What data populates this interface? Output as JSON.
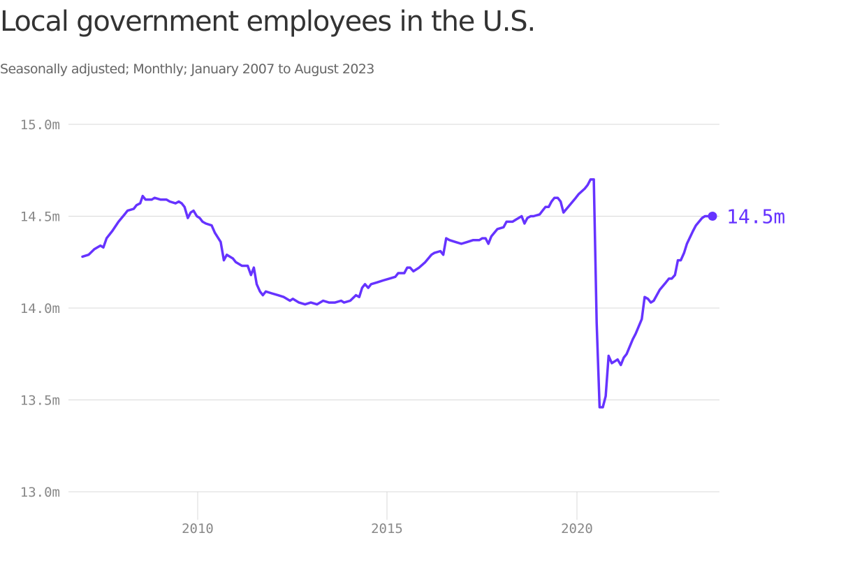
{
  "chart_data": {
    "type": "line",
    "title": "Local government employees in the U.S.",
    "subtitle": "Seasonally adjusted; Monthly; January 2007 to August 2023",
    "xlabel": "",
    "ylabel": "",
    "ylim": [
      13.0,
      15.0
    ],
    "xlim": [
      2007,
      2023.6
    ],
    "y_ticks": [
      {
        "value": 13.0,
        "label": "13.0m"
      },
      {
        "value": 13.5,
        "label": "13.5m"
      },
      {
        "value": 14.0,
        "label": "14.0m"
      },
      {
        "value": 14.5,
        "label": "14.5m"
      },
      {
        "value": 15.0,
        "label": "15.0m"
      }
    ],
    "x_ticks": [
      {
        "value": 2010,
        "label": "2010"
      },
      {
        "value": 2015,
        "label": "2015"
      },
      {
        "value": 2020,
        "label": "2020"
      }
    ],
    "grid": "horizontal",
    "line_color": "#6633ff",
    "end_label": "14.5m",
    "series": [
      {
        "values": [
          [
            2007.0,
            14.28
          ],
          [
            2007.17,
            14.29
          ],
          [
            2007.33,
            14.32
          ],
          [
            2007.5,
            14.34
          ],
          [
            2007.58,
            14.33
          ],
          [
            2007.67,
            14.38
          ],
          [
            2007.83,
            14.42
          ],
          [
            2008.0,
            14.47
          ],
          [
            2008.17,
            14.51
          ],
          [
            2008.25,
            14.53
          ],
          [
            2008.42,
            14.54
          ],
          [
            2008.5,
            14.56
          ],
          [
            2008.6,
            14.57
          ],
          [
            2008.67,
            14.61
          ],
          [
            2008.75,
            14.59
          ],
          [
            2008.92,
            14.59
          ],
          [
            2009.0,
            14.6
          ],
          [
            2009.17,
            14.59
          ],
          [
            2009.33,
            14.59
          ],
          [
            2009.42,
            14.58
          ],
          [
            2009.58,
            14.57
          ],
          [
            2009.67,
            14.58
          ],
          [
            2009.75,
            14.57
          ],
          [
            2009.83,
            14.55
          ],
          [
            2009.92,
            14.49
          ],
          [
            2010.0,
            14.52
          ],
          [
            2010.08,
            14.53
          ],
          [
            2010.17,
            14.5
          ],
          [
            2010.25,
            14.49
          ],
          [
            2010.33,
            14.47
          ],
          [
            2010.42,
            14.46
          ],
          [
            2010.58,
            14.45
          ],
          [
            2010.67,
            14.41
          ],
          [
            2010.83,
            14.36
          ],
          [
            2010.92,
            14.26
          ],
          [
            2011.0,
            14.29
          ],
          [
            2011.17,
            14.27
          ],
          [
            2011.25,
            14.25
          ],
          [
            2011.42,
            14.23
          ],
          [
            2011.58,
            14.23
          ],
          [
            2011.67,
            14.18
          ],
          [
            2011.75,
            14.22
          ],
          [
            2011.83,
            14.13
          ],
          [
            2011.92,
            14.09
          ],
          [
            2012.0,
            14.07
          ],
          [
            2012.08,
            14.09
          ],
          [
            2012.25,
            14.08
          ],
          [
            2012.42,
            14.07
          ],
          [
            2012.58,
            14.06
          ],
          [
            2012.75,
            14.04
          ],
          [
            2012.83,
            14.05
          ],
          [
            2013.0,
            14.03
          ],
          [
            2013.17,
            14.02
          ],
          [
            2013.33,
            14.03
          ],
          [
            2013.5,
            14.02
          ],
          [
            2013.67,
            14.04
          ],
          [
            2013.83,
            14.03
          ],
          [
            2014.0,
            14.03
          ],
          [
            2014.17,
            14.04
          ],
          [
            2014.25,
            14.03
          ],
          [
            2014.42,
            14.04
          ],
          [
            2014.58,
            14.07
          ],
          [
            2014.67,
            14.06
          ],
          [
            2014.75,
            14.11
          ],
          [
            2014.83,
            14.13
          ],
          [
            2014.92,
            14.11
          ],
          [
            2015.0,
            14.13
          ],
          [
            2015.17,
            14.14
          ],
          [
            2015.33,
            14.15
          ],
          [
            2015.5,
            14.16
          ],
          [
            2015.67,
            14.17
          ],
          [
            2015.75,
            14.19
          ],
          [
            2015.92,
            14.19
          ],
          [
            2016.0,
            14.22
          ],
          [
            2016.08,
            14.22
          ],
          [
            2016.17,
            14.2
          ],
          [
            2016.33,
            14.22
          ],
          [
            2016.5,
            14.25
          ],
          [
            2016.67,
            14.29
          ],
          [
            2016.75,
            14.3
          ],
          [
            2016.92,
            14.31
          ],
          [
            2017.0,
            14.29
          ],
          [
            2017.08,
            14.38
          ],
          [
            2017.17,
            14.37
          ],
          [
            2017.33,
            14.36
          ],
          [
            2017.5,
            14.35
          ],
          [
            2017.67,
            14.36
          ],
          [
            2017.83,
            14.37
          ],
          [
            2018.0,
            14.37
          ],
          [
            2018.08,
            14.38
          ],
          [
            2018.17,
            14.38
          ],
          [
            2018.25,
            14.35
          ],
          [
            2018.33,
            14.39
          ],
          [
            2018.5,
            14.43
          ],
          [
            2018.67,
            14.44
          ],
          [
            2018.75,
            14.47
          ],
          [
            2018.92,
            14.47
          ],
          [
            2019.0,
            14.48
          ],
          [
            2019.17,
            14.5
          ],
          [
            2019.25,
            14.46
          ],
          [
            2019.33,
            14.49
          ],
          [
            2019.42,
            14.5
          ],
          [
            2019.5,
            14.5
          ],
          [
            2019.67,
            14.51
          ],
          [
            2019.75,
            14.53
          ],
          [
            2019.83,
            14.55
          ],
          [
            2019.92,
            14.55
          ],
          [
            2020.0,
            14.58
          ],
          [
            2020.08,
            14.6
          ],
          [
            2020.17,
            14.6
          ],
          [
            2020.25,
            14.58
          ],
          [
            2020.33,
            14.52
          ],
          [
            2020.5,
            14.56
          ],
          [
            2020.67,
            14.6
          ],
          [
            2020.75,
            14.62
          ],
          [
            2020.92,
            14.65
          ],
          [
            2021.0,
            14.67
          ],
          [
            2021.08,
            14.7
          ],
          [
            2021.17,
            14.7
          ],
          [
            2021.25,
            13.92
          ],
          [
            2021.33,
            13.46
          ],
          [
            2021.42,
            13.46
          ],
          [
            2021.5,
            13.52
          ],
          [
            2021.58,
            13.74
          ],
          [
            2021.67,
            13.7
          ],
          [
            2021.75,
            13.71
          ],
          [
            2021.83,
            13.72
          ],
          [
            2021.92,
            13.69
          ],
          [
            2022.0,
            13.73
          ],
          [
            2022.08,
            13.75
          ],
          [
            2022.25,
            13.83
          ],
          [
            2022.33,
            13.86
          ],
          [
            2022.5,
            13.94
          ],
          [
            2022.58,
            14.06
          ],
          [
            2022.67,
            14.05
          ],
          [
            2022.75,
            14.03
          ],
          [
            2022.83,
            14.04
          ],
          [
            2023.0,
            14.1
          ],
          [
            2023.17,
            14.14
          ],
          [
            2023.25,
            14.16
          ],
          [
            2023.33,
            14.16
          ],
          [
            2023.42,
            14.18
          ],
          [
            2023.5,
            14.26
          ],
          [
            2023.58,
            14.26
          ],
          [
            2023.67,
            14.3
          ],
          [
            2023.75,
            14.35
          ],
          [
            2023.92,
            14.42
          ],
          [
            2024.0,
            14.45
          ],
          [
            2024.17,
            14.49
          ],
          [
            2024.25,
            14.5
          ],
          [
            2024.42,
            14.5
          ]
        ]
      }
    ]
  }
}
